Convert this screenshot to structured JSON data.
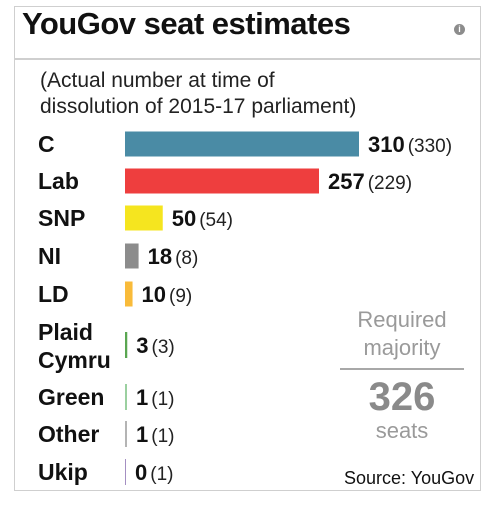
{
  "title": "YouGov seat estimates",
  "subtitle_line1": "(Actual number at time of",
  "subtitle_line2": "dissolution of 2015-17 parliament)",
  "majority": {
    "line1": "Required",
    "line2": "majority",
    "value": "326",
    "unit": "seats"
  },
  "source": "Source: YouGov",
  "chart_data": {
    "type": "bar",
    "orientation": "horizontal",
    "categories": [
      "C",
      "Lab",
      "SNP",
      "NI",
      "LD",
      "Plaid Cymru",
      "Green",
      "Other",
      "Ukip"
    ],
    "values": [
      310,
      257,
      50,
      18,
      10,
      3,
      1,
      1,
      0
    ],
    "previous": [
      330,
      229,
      54,
      8,
      9,
      3,
      1,
      1,
      1
    ],
    "colors": [
      "#4a8ba5",
      "#ee3e3e",
      "#f5e51f",
      "#8c8c8c",
      "#f9bb3a",
      "#5aa651",
      "#9bd0a0",
      "#b4b4b4",
      "#a48fc2"
    ],
    "title": "YouGov seat estimates",
    "grid": false
  }
}
